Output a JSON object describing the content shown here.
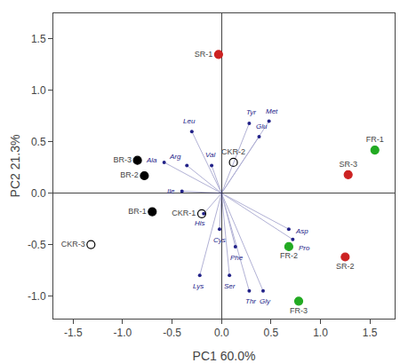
{
  "chart_data": {
    "type": "scatter",
    "xlabel": "PC1 60.0%",
    "ylabel": "PC2 21.3%",
    "xlim": [
      -1.7,
      1.75
    ],
    "ylim": [
      -1.22,
      1.75
    ],
    "xticks": [
      -1.5,
      {
        "value": -1.0,
        "label": "-1.0"
      },
      -0.5,
      {
        "value": 0.0,
        "label": "0.0"
      },
      0.5,
      {
        "value": 1.0,
        "label": "1.0"
      },
      1.5
    ],
    "yticks": [
      {
        "value": -1.0,
        "label": "-1.0"
      },
      -0.5,
      {
        "value": 0.0,
        "label": "0.0"
      },
      0.5,
      {
        "value": 1.0,
        "label": "1.0"
      },
      1.5
    ],
    "grid": false,
    "series": [
      {
        "type": "vector",
        "color": "#222288",
        "labels": [
          "Leu",
          "Ala",
          "Arg",
          "Val",
          "Ile",
          "His",
          "Cys",
          "Phe",
          "Lys",
          "Ser",
          "Thr",
          "Gly",
          "Asp",
          "Pro",
          "Tyr",
          "Met",
          "Glu"
        ],
        "x": [
          -0.3,
          -0.58,
          -0.35,
          -0.1,
          -0.4,
          -0.18,
          -0.02,
          0.14,
          -0.22,
          0.08,
          0.28,
          0.42,
          0.68,
          0.72,
          0.28,
          0.48,
          0.38
        ],
        "y": [
          0.6,
          0.3,
          0.27,
          0.27,
          0.02,
          -0.2,
          -0.35,
          -0.52,
          -0.8,
          -0.8,
          -0.95,
          -0.95,
          -0.35,
          -0.45,
          0.68,
          0.7,
          0.55
        ]
      },
      {
        "type": "scatter",
        "marker": "circle-open",
        "color": "black",
        "labels": [
          "CKR-1",
          "CKR-2",
          "CKR-3"
        ],
        "x": [
          -0.2,
          0.12,
          -1.32
        ],
        "y": [
          -0.2,
          0.3,
          -0.5
        ]
      },
      {
        "type": "scatter",
        "marker": "circle",
        "color": "black",
        "labels": [
          "BR-1",
          "BR-2",
          "BR-3"
        ],
        "x": [
          -0.7,
          -0.78,
          -0.85
        ],
        "y": [
          -0.18,
          0.17,
          0.32
        ]
      },
      {
        "type": "scatter",
        "marker": "circle",
        "color": "#cc2222",
        "labels": [
          "SR-1",
          "SR-2",
          "SR-3"
        ],
        "x": [
          -0.03,
          1.25,
          1.28
        ],
        "y": [
          1.35,
          -0.62,
          0.18
        ]
      },
      {
        "type": "scatter",
        "marker": "circle",
        "color": "#22aa22",
        "labels": [
          "FR-1",
          "FR-2",
          "FR-3"
        ],
        "x": [
          1.55,
          0.68,
          0.78
        ],
        "y": [
          0.42,
          -0.52,
          -1.05
        ]
      }
    ]
  }
}
